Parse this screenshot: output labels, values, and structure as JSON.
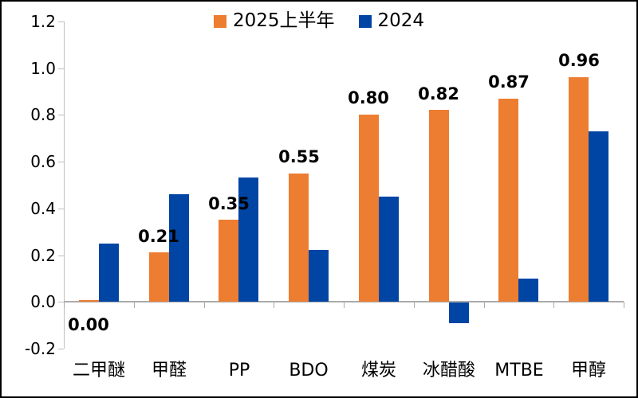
{
  "chart_data": {
    "type": "bar",
    "categories": [
      "二甲醚",
      "甲醛",
      "PP",
      "BDO",
      "煤炭",
      "冰醋酸",
      "MTBE",
      "甲醇"
    ],
    "series": [
      {
        "name": "2025上半年",
        "color": "#ED7D31",
        "values": [
          0.0,
          0.21,
          0.35,
          0.55,
          0.8,
          0.82,
          0.87,
          0.96
        ],
        "show_value_labels": true
      },
      {
        "name": "2024",
        "color": "#0045A4",
        "values": [
          0.25,
          0.46,
          0.53,
          0.22,
          0.45,
          -0.09,
          0.1,
          0.73
        ],
        "show_value_labels": false
      }
    ],
    "value_labels": [
      "0.00",
      "0.21",
      "0.35",
      "0.55",
      "0.80",
      "0.82",
      "0.87",
      "0.96"
    ],
    "ylim": [
      -0.2,
      1.2
    ],
    "yticks": [
      1.2,
      1.0,
      0.8,
      0.6,
      0.4,
      0.2,
      0.0,
      -0.2
    ],
    "ytick_labels": [
      "1.2",
      "1.0",
      "0.8",
      "0.6",
      "0.4",
      "0.2",
      "0.0",
      "-0.2"
    ],
    "grid": false,
    "legend_position": "top-center",
    "axis_color": "#BFBFBF",
    "zero_line_color": "#ABABAB",
    "text_color": "#000000"
  }
}
